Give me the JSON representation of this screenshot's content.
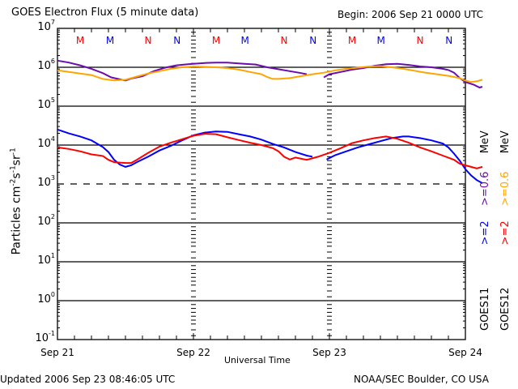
{
  "header": {
    "title": "GOES Electron Flux (5 minute data)",
    "begin": "Begin: 2006 Sep 21 0000 UTC"
  },
  "footer": {
    "updated": "Updated 2006 Sep 23 08:46:05 UTC",
    "credit": "NOAA/SEC Boulder, CO USA"
  },
  "legend": {
    "goes11": {
      "label": "GOES11",
      "series": [
        {
          "text": ">=2",
          "color": "#0000ff"
        },
        {
          "text": ">=0.6",
          "color": "#6a0dad"
        }
      ],
      "unit": "MeV"
    },
    "goes12": {
      "label": "GOES12",
      "series": [
        {
          "text": ">=2",
          "color": "#ff0000"
        },
        {
          "text": ">=0.6",
          "color": "#ffa500"
        }
      ],
      "unit": "MeV"
    }
  },
  "chart_data": {
    "type": "line",
    "title": "GOES Electron Flux (5 minute data)",
    "xlabel": "Universal Time",
    "ylabel": "Particles cm-2s-1sr-1",
    "yscale": "log",
    "ylim_log10": [
      -1,
      7
    ],
    "y_tick_labels": [
      {
        "base": "10",
        "exp": "7"
      },
      {
        "base": "10",
        "exp": "6"
      },
      {
        "base": "10",
        "exp": "5"
      },
      {
        "base": "10",
        "exp": "4"
      },
      {
        "base": "10",
        "exp": "3"
      },
      {
        "base": "10",
        "exp": "2"
      },
      {
        "base": "10",
        "exp": "1"
      },
      {
        "base": "10",
        "exp": "0"
      },
      {
        "base": "10",
        "exp": "-1"
      }
    ],
    "x_unit": "hours since 2006 Sep 21 0000 UTC",
    "xlim": [
      0,
      72
    ],
    "x_tick_labels": [
      "Sep 21",
      "Sep 22",
      "Sep 23",
      "Sep 24"
    ],
    "threshold_log10": 3,
    "grid_log10": [
      6,
      5,
      4,
      2,
      1,
      0
    ],
    "markers": [
      {
        "text": "M",
        "hour": 4,
        "color": "#ff0000"
      },
      {
        "text": "M",
        "hour": 9.3,
        "color": "#0000ff"
      },
      {
        "text": "N",
        "hour": 16,
        "color": "#ff0000"
      },
      {
        "text": "N",
        "hour": 21.1,
        "color": "#0000ff"
      },
      {
        "text": "M",
        "hour": 28,
        "color": "#ff0000"
      },
      {
        "text": "M",
        "hour": 33.1,
        "color": "#0000ff"
      },
      {
        "text": "N",
        "hour": 40,
        "color": "#ff0000"
      },
      {
        "text": "N",
        "hour": 45.1,
        "color": "#0000ff"
      },
      {
        "text": "M",
        "hour": 52,
        "color": "#ff0000"
      },
      {
        "text": "M",
        "hour": 57.1,
        "color": "#0000ff"
      },
      {
        "text": "N",
        "hour": 64,
        "color": "#ff0000"
      },
      {
        "text": "N",
        "hour": 69.1,
        "color": "#0000ff"
      }
    ],
    "series": [
      {
        "name": "GOES11 >=0.6 MeV",
        "color": "#6a0dad",
        "segments": [
          [
            [
              0,
              6.17
            ],
            [
              2,
              6.12
            ],
            [
              4,
              6.05
            ],
            [
              6,
              5.96
            ],
            [
              8,
              5.85
            ],
            [
              9.5,
              5.74
            ],
            [
              11,
              5.69
            ],
            [
              12,
              5.66
            ],
            [
              13,
              5.71
            ],
            [
              15,
              5.77
            ],
            [
              17,
              5.9
            ],
            [
              19,
              5.99
            ],
            [
              21,
              6.05
            ],
            [
              23,
              6.08
            ],
            [
              26,
              6.11
            ],
            [
              28,
              6.12
            ],
            [
              30,
              6.12
            ],
            [
              33,
              6.09
            ],
            [
              35,
              6.07
            ],
            [
              37,
              6.0
            ],
            [
              39,
              5.95
            ],
            [
              41,
              5.9
            ],
            [
              43,
              5.85
            ],
            [
              44,
              5.82
            ]
          ],
          [
            [
              47,
              5.74
            ],
            [
              48,
              5.82
            ],
            [
              50,
              5.88
            ],
            [
              52,
              5.94
            ],
            [
              54,
              5.98
            ],
            [
              56,
              6.04
            ],
            [
              58,
              6.08
            ],
            [
              60,
              6.09
            ],
            [
              62,
              6.06
            ],
            [
              64,
              6.02
            ],
            [
              66,
              6.0
            ],
            [
              68,
              5.96
            ],
            [
              69,
              5.93
            ],
            [
              70,
              5.86
            ],
            [
              71,
              5.72
            ],
            [
              72,
              5.62
            ],
            [
              73.5,
              5.55
            ],
            [
              74.5,
              5.48
            ],
            [
              75,
              5.5
            ]
          ]
        ]
      },
      {
        "name": "GOES12 >=0.6 MeV",
        "color": "#ffa500",
        "segments": [
          [
            [
              0,
              5.92
            ],
            [
              2,
              5.88
            ],
            [
              4,
              5.84
            ],
            [
              6,
              5.8
            ],
            [
              8,
              5.7
            ],
            [
              10,
              5.66
            ],
            [
              12,
              5.68
            ],
            [
              14,
              5.76
            ],
            [
              16,
              5.84
            ],
            [
              18,
              5.9
            ],
            [
              20,
              5.96
            ],
            [
              22,
              6.0
            ],
            [
              24,
              6.02
            ],
            [
              26,
              6.01
            ],
            [
              28,
              6.0
            ],
            [
              30,
              5.98
            ],
            [
              32,
              5.94
            ],
            [
              34,
              5.88
            ],
            [
              36,
              5.82
            ],
            [
              37,
              5.75
            ],
            [
              38,
              5.7
            ],
            [
              39,
              5.7
            ],
            [
              41,
              5.72
            ],
            [
              43,
              5.77
            ],
            [
              45,
              5.82
            ],
            [
              47,
              5.86
            ],
            [
              49,
              5.92
            ],
            [
              51,
              5.96
            ],
            [
              53,
              5.99
            ],
            [
              55,
              6.02
            ],
            [
              57,
              6.03
            ],
            [
              59,
              6.0
            ],
            [
              61,
              5.96
            ],
            [
              63,
              5.91
            ],
            [
              65,
              5.86
            ],
            [
              67,
              5.82
            ],
            [
              69,
              5.78
            ],
            [
              71,
              5.72
            ],
            [
              72,
              5.66
            ],
            [
              73,
              5.62
            ],
            [
              74,
              5.64
            ],
            [
              75,
              5.68
            ]
          ]
        ]
      },
      {
        "name": "GOES11 >=2 MeV",
        "color": "#0000ff",
        "segments": [
          [
            [
              0,
              4.4
            ],
            [
              2,
              4.3
            ],
            [
              4,
              4.22
            ],
            [
              6,
              4.12
            ],
            [
              8,
              3.95
            ],
            [
              9,
              3.82
            ],
            [
              10,
              3.62
            ],
            [
              11,
              3.5
            ],
            [
              12,
              3.44
            ],
            [
              13,
              3.48
            ],
            [
              14,
              3.56
            ],
            [
              16,
              3.7
            ],
            [
              18,
              3.86
            ],
            [
              20,
              3.98
            ],
            [
              22,
              4.12
            ],
            [
              24,
              4.25
            ],
            [
              26,
              4.32
            ],
            [
              28,
              4.35
            ],
            [
              30,
              4.34
            ],
            [
              32,
              4.28
            ],
            [
              34,
              4.22
            ],
            [
              36,
              4.14
            ],
            [
              38,
              4.03
            ],
            [
              40,
              3.94
            ],
            [
              42,
              3.82
            ],
            [
              44,
              3.73
            ],
            [
              45,
              3.7
            ]
          ],
          [
            [
              47.5,
              3.63
            ],
            [
              49,
              3.74
            ],
            [
              51,
              3.84
            ],
            [
              53,
              3.94
            ],
            [
              55,
              4.02
            ],
            [
              57,
              4.1
            ],
            [
              59,
              4.18
            ],
            [
              61,
              4.22
            ],
            [
              62,
              4.22
            ],
            [
              64,
              4.18
            ],
            [
              66,
              4.12
            ],
            [
              68,
              4.04
            ],
            [
              69,
              3.94
            ],
            [
              70,
              3.78
            ],
            [
              71,
              3.6
            ],
            [
              72,
              3.38
            ],
            [
              73,
              3.22
            ],
            [
              74,
              3.1
            ],
            [
              75,
              3.02
            ]
          ]
        ]
      },
      {
        "name": "GOES12 >=2 MeV",
        "color": "#ff0000",
        "segments": [
          [
            [
              0,
              3.94
            ],
            [
              2,
              3.9
            ],
            [
              4,
              3.84
            ],
            [
              6,
              3.76
            ],
            [
              8,
              3.72
            ],
            [
              9,
              3.62
            ],
            [
              10,
              3.56
            ],
            [
              12,
              3.54
            ],
            [
              13,
              3.54
            ],
            [
              14,
              3.62
            ],
            [
              16,
              3.8
            ],
            [
              18,
              3.96
            ],
            [
              20,
              4.06
            ],
            [
              22,
              4.15
            ],
            [
              24,
              4.24
            ],
            [
              26,
              4.29
            ],
            [
              28,
              4.28
            ],
            [
              30,
              4.2
            ],
            [
              32,
              4.13
            ],
            [
              34,
              4.06
            ],
            [
              36,
              4.0
            ],
            [
              38,
              3.92
            ],
            [
              39,
              3.84
            ],
            [
              40,
              3.7
            ],
            [
              41,
              3.63
            ],
            [
              42,
              3.68
            ],
            [
              44,
              3.62
            ],
            [
              46,
              3.7
            ],
            [
              48,
              3.8
            ],
            [
              50,
              3.92
            ],
            [
              52,
              4.05
            ],
            [
              54,
              4.12
            ],
            [
              56,
              4.18
            ],
            [
              58,
              4.22
            ],
            [
              60,
              4.16
            ],
            [
              62,
              4.06
            ],
            [
              64,
              3.94
            ],
            [
              66,
              3.84
            ],
            [
              68,
              3.73
            ],
            [
              70,
              3.62
            ],
            [
              71,
              3.52
            ],
            [
              72,
              3.48
            ],
            [
              73,
              3.44
            ],
            [
              74,
              3.4
            ],
            [
              75,
              3.44
            ]
          ]
        ]
      }
    ]
  }
}
